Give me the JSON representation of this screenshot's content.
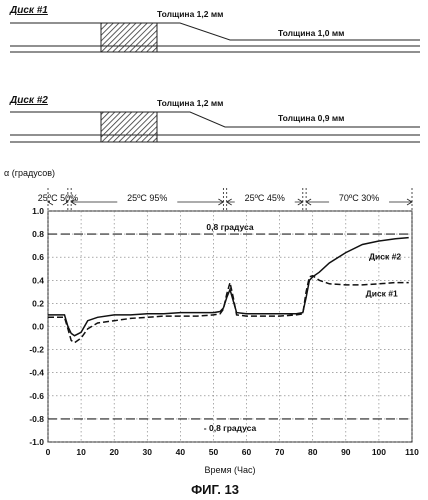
{
  "disk1": {
    "title": "Диск #1",
    "thick_left": "Толщина 1,2 мм",
    "thick_right": "Толщина 1,0 мм"
  },
  "disk2": {
    "title": "Диск #2",
    "thick_left": "Толщина 1,2 мм",
    "thick_right": "Толщина 0,9 мм"
  },
  "chart_data": {
    "type": "line",
    "ylabel": "α (градусов)",
    "xlabel": "Время (Час)",
    "xlim": [
      0,
      110
    ],
    "ylim": [
      -1.0,
      1.0
    ],
    "xticks": [
      "0",
      "10",
      "20",
      "30",
      "40",
      "50",
      "60",
      "70",
      "80",
      "90",
      "100",
      "110"
    ],
    "yticks": [
      "1.0",
      "0.8",
      "0.6",
      "0.4",
      "0.2",
      "0.0",
      "-0.2",
      "-0.4",
      "-0.6",
      "-0.8",
      "-1.0"
    ],
    "grid": true,
    "conditions": [
      {
        "label": "25ºC 50%",
        "x0": 0,
        "x1": 6
      },
      {
        "label": "25ºC 95%",
        "x0": 7,
        "x1": 53
      },
      {
        "label": "25ºC 45%",
        "x0": 54,
        "x1": 77
      },
      {
        "label": "70ºC 30%",
        "x0": 78,
        "x1": 110
      }
    ],
    "reference_lines": [
      {
        "label": "0,8 градуса",
        "y": 0.8
      },
      {
        "label": "- 0,8 градуса",
        "y": -0.8
      }
    ],
    "series": [
      {
        "name": "Диск #2",
        "style": "solid",
        "x": [
          0,
          5,
          6,
          7,
          8,
          10,
          12,
          15,
          20,
          25,
          30,
          35,
          40,
          45,
          50,
          52,
          53,
          54,
          55,
          56,
          57,
          60,
          65,
          70,
          75,
          77,
          78,
          79,
          80,
          82,
          85,
          90,
          95,
          100,
          105,
          109
        ],
        "y": [
          0.1,
          0.1,
          0.0,
          -0.06,
          -0.08,
          -0.05,
          0.05,
          0.08,
          0.1,
          0.1,
          0.11,
          0.11,
          0.12,
          0.12,
          0.12,
          0.13,
          0.16,
          0.25,
          0.32,
          0.22,
          0.12,
          0.11,
          0.11,
          0.11,
          0.11,
          0.12,
          0.25,
          0.4,
          0.43,
          0.47,
          0.55,
          0.64,
          0.71,
          0.74,
          0.76,
          0.77
        ]
      },
      {
        "name": "Диск #1",
        "style": "dashed",
        "x": [
          0,
          5,
          6,
          7,
          8,
          10,
          12,
          15,
          20,
          25,
          30,
          35,
          40,
          45,
          50,
          52,
          53,
          54,
          55,
          56,
          57,
          60,
          65,
          70,
          75,
          77,
          78,
          79,
          80,
          82,
          85,
          90,
          95,
          100,
          105,
          109
        ],
        "y": [
          0.08,
          0.08,
          -0.02,
          -0.12,
          -0.14,
          -0.1,
          -0.02,
          0.03,
          0.05,
          0.07,
          0.08,
          0.09,
          0.09,
          0.09,
          0.1,
          0.11,
          0.15,
          0.28,
          0.38,
          0.25,
          0.1,
          0.09,
          0.09,
          0.09,
          0.1,
          0.11,
          0.3,
          0.43,
          0.44,
          0.4,
          0.37,
          0.36,
          0.36,
          0.37,
          0.38,
          0.38
        ]
      }
    ]
  },
  "figure": {
    "caption": "ФИГ. 13"
  }
}
